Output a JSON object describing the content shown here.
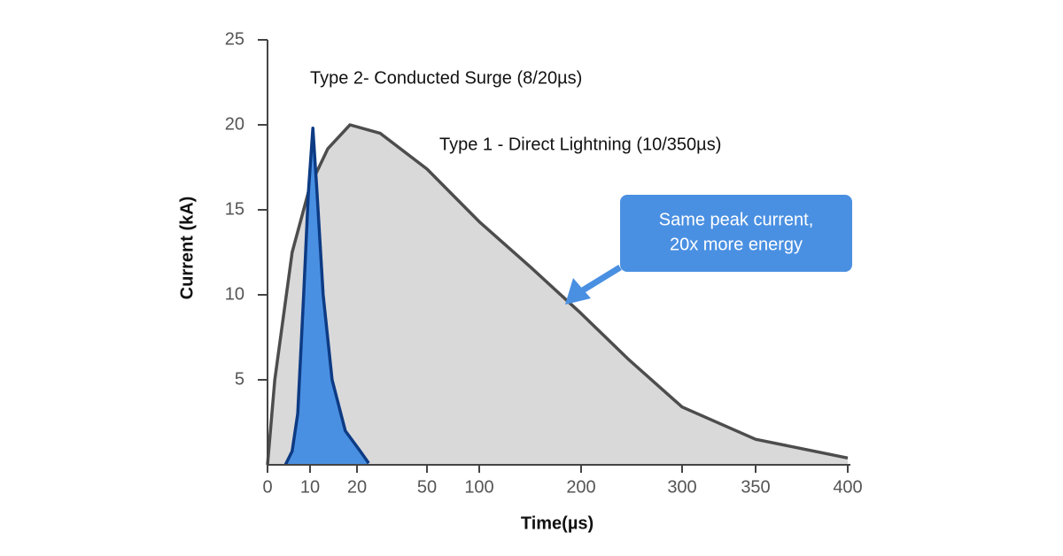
{
  "chart_data": {
    "type": "area",
    "x_label": "Time(µs)",
    "y_label": "Current (kA)",
    "xlim": [
      0,
      400
    ],
    "xticks": [
      0,
      10,
      20,
      50,
      100,
      200,
      300,
      350,
      400
    ],
    "ylim": [
      0,
      25
    ],
    "yticks": [
      5,
      10,
      15,
      20,
      25
    ],
    "series": [
      {
        "name": "Type 1 - Direct Lightning (10/350µs)",
        "color": "#d9d9da",
        "line_color": "#4d4d4d",
        "x": [
          0,
          1.7,
          5.8,
          10,
          13.8,
          18.5,
          30,
          50,
          100,
          151,
          200,
          247,
          300,
          350,
          400
        ],
        "values": [
          0,
          5,
          12.5,
          16.4,
          18.6,
          20,
          19.5,
          17.4,
          14.3,
          11.6,
          8.9,
          6.2,
          3.4,
          1.5,
          0.4
        ]
      },
      {
        "name": "Type 2- Conducted Surge (8/20µs)",
        "color": "#4a90e2",
        "line_color": "#0d3b84",
        "x": [
          4.2,
          5.8,
          7.1,
          8.5,
          9.6,
          10.6,
          11.5,
          12.8,
          14.7,
          17.5,
          21.4,
          25
        ],
        "values": [
          0,
          0.8,
          3,
          10,
          16,
          19.8,
          16,
          10,
          5,
          2,
          0.8,
          0.1
        ]
      }
    ],
    "callout": [
      "Same peak current,",
      "20x more energy"
    ]
  }
}
